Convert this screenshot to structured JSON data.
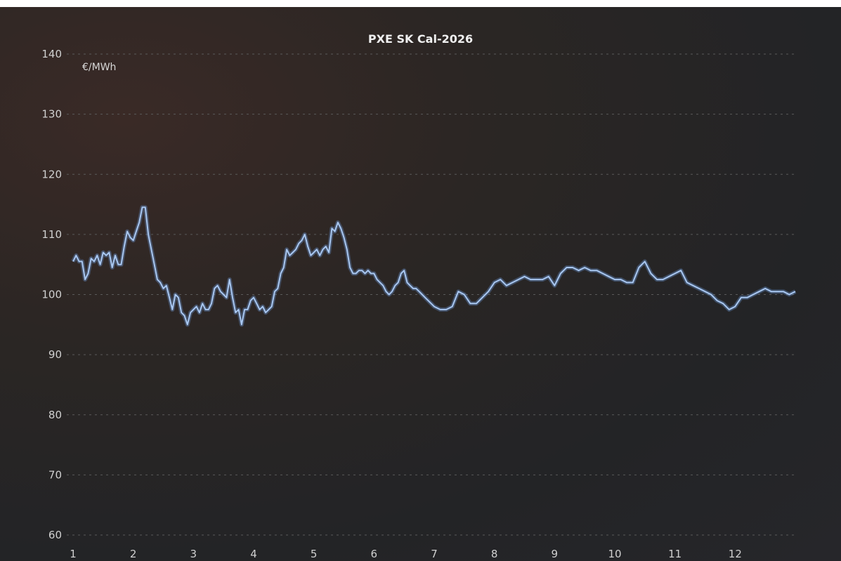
{
  "chart_data": {
    "type": "line",
    "title": "PXE SK Cal-2026",
    "unit_label": "€/MWh",
    "xlabel": "",
    "ylabel": "",
    "ylim": [
      60,
      140
    ],
    "yticks": [
      60,
      70,
      80,
      90,
      100,
      110,
      120,
      130,
      140
    ],
    "x_tick_labels": [
      "1",
      "2",
      "3",
      "4",
      "5",
      "6",
      "7",
      "8",
      "9",
      "10",
      "11",
      "12"
    ],
    "xlim": [
      1,
      13
    ],
    "grid": true,
    "line_color": "#6f9fe0",
    "series": [
      {
        "x": [
          1.0,
          1.05,
          1.1,
          1.15,
          1.2,
          1.25,
          1.3,
          1.35,
          1.4,
          1.45,
          1.5,
          1.55,
          1.6,
          1.65,
          1.7,
          1.75,
          1.8,
          1.85,
          1.9,
          1.95,
          2.0,
          2.05,
          2.1,
          2.15,
          2.2,
          2.25,
          2.3,
          2.35,
          2.4,
          2.45,
          2.5,
          2.55,
          2.6,
          2.65,
          2.7,
          2.75,
          2.8,
          2.85,
          2.9,
          2.95,
          3.0,
          3.05,
          3.1,
          3.15,
          3.2,
          3.25,
          3.3,
          3.35,
          3.4,
          3.45,
          3.5,
          3.55,
          3.6,
          3.65,
          3.7,
          3.75,
          3.8,
          3.85,
          3.9,
          3.95,
          4.0,
          4.05,
          4.1,
          4.15,
          4.2,
          4.25,
          4.3,
          4.35,
          4.4,
          4.45,
          4.5,
          4.55,
          4.6,
          4.65,
          4.7,
          4.75,
          4.8,
          4.85,
          4.9,
          4.95,
          5.0,
          5.05,
          5.1,
          5.15,
          5.2,
          5.25,
          5.3,
          5.35,
          5.4,
          5.45,
          5.5,
          5.55,
          5.6,
          5.65,
          5.7,
          5.75,
          5.8,
          5.85,
          5.9,
          5.95,
          6.0,
          6.05,
          6.1,
          6.15,
          6.2,
          6.25,
          6.3,
          6.35,
          6.4,
          6.45,
          6.5,
          6.55,
          6.6,
          6.65,
          6.7,
          6.75,
          6.8,
          6.85,
          6.9,
          6.95,
          7.0,
          7.1,
          7.2,
          7.3,
          7.4,
          7.5,
          7.6,
          7.7,
          7.8,
          7.9,
          8.0,
          8.1,
          8.2,
          8.3,
          8.4,
          8.5,
          8.6,
          8.7,
          8.8,
          8.9,
          9.0,
          9.1,
          9.2,
          9.3,
          9.4,
          9.5,
          9.6,
          9.7,
          9.8,
          9.9,
          10.0,
          10.1,
          10.2,
          10.3,
          10.4,
          10.5,
          10.6,
          10.7,
          10.8,
          10.9,
          11.0,
          11.1,
          11.2,
          11.3,
          11.4,
          11.5,
          11.6,
          11.7,
          11.8,
          11.9,
          12.0,
          12.1,
          12.2,
          12.3,
          12.4,
          12.5,
          12.6,
          12.7,
          12.8,
          12.9,
          13.0
        ],
        "y": [
          105.5,
          106.5,
          105.5,
          105.5,
          102.5,
          103.5,
          106.0,
          105.5,
          106.5,
          105.0,
          107.0,
          106.5,
          107.0,
          104.5,
          106.5,
          105.0,
          105.0,
          108.0,
          110.5,
          109.5,
          109.0,
          110.5,
          112.0,
          114.5,
          114.5,
          110.0,
          107.5,
          105.0,
          102.5,
          102.0,
          101.0,
          101.5,
          99.5,
          97.5,
          100.0,
          99.5,
          97.0,
          96.5,
          95.0,
          97.0,
          97.5,
          98.0,
          97.0,
          98.5,
          97.5,
          97.5,
          98.5,
          101.0,
          101.5,
          100.5,
          100.0,
          99.5,
          102.5,
          99.5,
          97.0,
          97.5,
          95.0,
          97.5,
          97.5,
          99.0,
          99.5,
          98.5,
          97.5,
          98.0,
          97.0,
          97.5,
          98.0,
          100.5,
          101.0,
          103.5,
          104.5,
          107.5,
          106.5,
          107.0,
          107.5,
          108.5,
          109.0,
          110.0,
          108.0,
          106.5,
          107.0,
          107.5,
          106.5,
          107.5,
          108.0,
          107.0,
          111.0,
          110.5,
          112.0,
          111.0,
          109.5,
          107.5,
          104.5,
          103.5,
          103.5,
          104.0,
          104.0,
          103.5,
          104.0,
          103.5,
          103.5,
          102.5,
          102.0,
          101.5,
          100.5,
          100.0,
          100.5,
          101.5,
          102.0,
          103.5,
          104.0,
          102.0,
          101.5,
          101.0,
          101.0,
          100.5,
          100.0,
          99.5,
          99.0,
          98.5,
          98.0,
          97.5,
          97.5,
          98.0,
          100.5,
          100.0,
          98.5,
          98.5,
          99.5,
          100.5,
          102.0,
          102.5,
          101.5,
          102.0,
          102.5,
          103.0,
          102.5,
          102.5,
          102.5,
          103.0,
          101.5,
          103.5,
          104.5,
          104.5,
          104.0,
          104.5,
          104.0,
          104.0,
          103.5,
          103.0,
          102.5,
          102.5,
          102.0,
          102.0,
          104.5,
          105.5,
          103.5,
          102.5,
          102.5,
          103.0,
          103.5,
          104.0,
          102.0,
          101.5,
          101.0,
          100.5,
          100.0,
          99.0,
          98.5,
          97.5,
          98.0,
          99.5,
          99.5,
          100.0,
          100.5,
          101.0,
          100.5,
          100.5,
          100.5,
          100.0,
          100.5
        ]
      }
    ]
  }
}
